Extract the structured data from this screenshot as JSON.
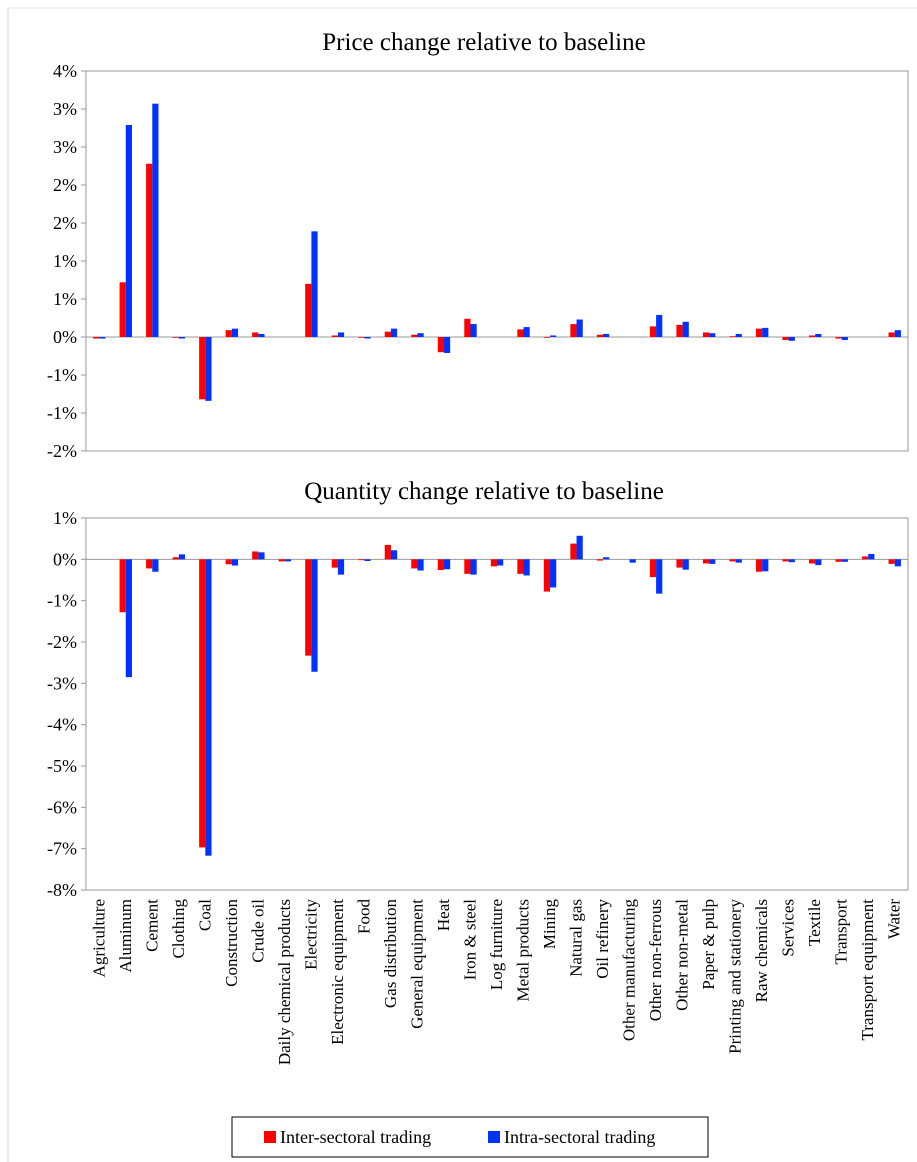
{
  "colors": {
    "inter": "#ff0000",
    "intra": "#0033ff",
    "axis": "#9a9a9a"
  },
  "legend": {
    "items": [
      "Inter-sectoral trading",
      "Intra-sectoral trading"
    ],
    "placement": "bottom"
  },
  "chart_data": [
    {
      "type": "bar",
      "title": "Price change relative to baseline",
      "ylim": [
        -1.5,
        3.5
      ],
      "yticks": [
        3.5,
        3.0,
        2.5,
        2.0,
        1.5,
        1.0,
        0.5,
        0.0,
        -0.5,
        -1.0,
        -1.5
      ],
      "ytick_labels": [
        "4%",
        "3%",
        "3%",
        "2%",
        "2%",
        "1%",
        "1%",
        "0%",
        "-1%",
        "-1%",
        "-2%"
      ],
      "grid": false,
      "categories": [
        "Agriculture",
        "Aluminum",
        "Cement",
        "Clothing",
        "Coal",
        "Construction",
        "Crude oil",
        "Daily chemical products",
        "Electricity",
        "Electronic equipment",
        "Food",
        "Gas distribution",
        "General equipment",
        "Heat",
        "Iron & steel",
        "Log furniture",
        "Metal products",
        "Mining",
        "Natural gas",
        "Oil refinery",
        "Other manufacturing",
        "Other non-ferrous",
        "Other non-metal",
        "Paper & pulp",
        "Printing and stationery",
        "Raw chemicals",
        "Services",
        "Textile",
        "Transport",
        "Transport equipment",
        "Water"
      ],
      "series": [
        {
          "name": "Inter-sectoral trading",
          "values": [
            -0.02,
            0.72,
            2.28,
            -0.01,
            -0.82,
            0.09,
            0.06,
            0.0,
            0.7,
            0.02,
            -0.01,
            0.07,
            0.03,
            -0.2,
            0.24,
            0.0,
            0.1,
            -0.01,
            0.17,
            0.03,
            0.0,
            0.14,
            0.16,
            0.06,
            0.01,
            0.11,
            -0.04,
            0.02,
            -0.02,
            0.0,
            0.06
          ]
        },
        {
          "name": "Intra-sectoral trading",
          "values": [
            -0.02,
            2.79,
            3.07,
            -0.02,
            -0.84,
            0.11,
            0.04,
            0.0,
            1.39,
            0.06,
            -0.02,
            0.11,
            0.05,
            -0.21,
            0.17,
            0.0,
            0.13,
            0.02,
            0.23,
            0.04,
            0.0,
            0.29,
            0.2,
            0.05,
            0.04,
            0.12,
            -0.05,
            0.04,
            -0.04,
            0.0,
            0.09
          ]
        }
      ]
    },
    {
      "type": "bar",
      "title": "Quantity change relative to baseline",
      "ylim": [
        -8,
        1
      ],
      "yticks": [
        1,
        0,
        -1,
        -2,
        -3,
        -4,
        -5,
        -6,
        -7,
        -8
      ],
      "ytick_labels": [
        "1%",
        "0%",
        "-1%",
        "-2%",
        "-3%",
        "-4%",
        "-5%",
        "-6%",
        "-7%",
        "-8%"
      ],
      "grid": false,
      "categories": [
        "Agriculture",
        "Aluminum",
        "Cement",
        "Clothing",
        "Coal",
        "Construction",
        "Crude oil",
        "Daily chemical products",
        "Electricity",
        "Electronic equipment",
        "Food",
        "Gas distribution",
        "General equipment",
        "Heat",
        "Iron & steel",
        "Log furniture",
        "Metal products",
        "Mining",
        "Natural gas",
        "Oil refinery",
        "Other manufacturing",
        "Other non-ferrous",
        "Other non-metal",
        "Paper & pulp",
        "Printing and stationery",
        "Raw chemicals",
        "Services",
        "Textile",
        "Transport",
        "Transport equipment",
        "Water"
      ],
      "series": [
        {
          "name": "Inter-sectoral trading",
          "values": [
            0.0,
            -1.28,
            -0.22,
            0.05,
            -6.97,
            -0.12,
            0.19,
            -0.05,
            -2.33,
            -0.2,
            -0.02,
            0.35,
            -0.22,
            -0.26,
            -0.35,
            -0.17,
            -0.35,
            -0.78,
            0.38,
            -0.03,
            0.0,
            -0.43,
            -0.2,
            -0.1,
            -0.05,
            -0.3,
            -0.05,
            -0.1,
            -0.06,
            0.07,
            -0.11
          ]
        },
        {
          "name": "Intra-sectoral trading",
          "values": [
            0.0,
            -2.85,
            -0.3,
            0.12,
            -7.17,
            -0.15,
            0.17,
            -0.05,
            -2.72,
            -0.37,
            -0.04,
            0.22,
            -0.27,
            -0.24,
            -0.37,
            -0.15,
            -0.39,
            -0.68,
            0.57,
            0.05,
            -0.08,
            -0.83,
            -0.25,
            -0.11,
            -0.08,
            -0.29,
            -0.07,
            -0.14,
            -0.06,
            0.13,
            -0.17
          ]
        }
      ]
    }
  ]
}
